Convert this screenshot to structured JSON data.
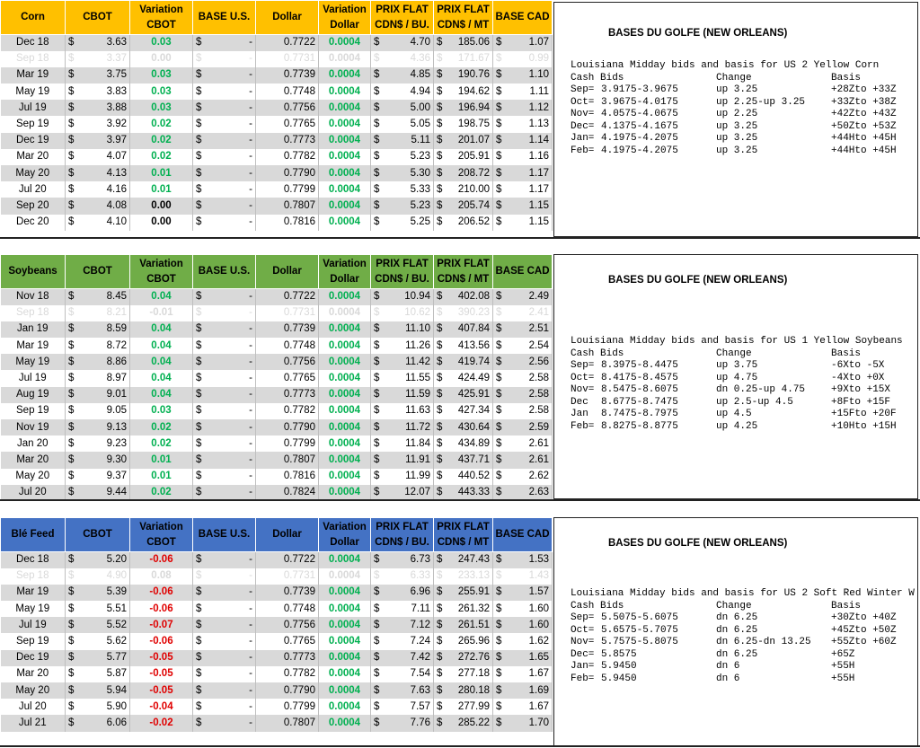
{
  "headers": {
    "cbot": "CBOT",
    "variation_cbot": [
      "Variation",
      "CBOT"
    ],
    "base_us": "BASE U.S.",
    "dollar": "Dollar",
    "variation_dollar": [
      "Variation",
      "Dollar"
    ],
    "prix_bu": [
      "PRIX FLAT",
      "CDN$ / BU."
    ],
    "prix_mt": [
      "PRIX FLAT",
      "CDN$ / MT"
    ],
    "base_cad": "BASE CAD"
  },
  "tables": [
    {
      "commodity": "Corn",
      "color": "#ffc000",
      "rows": [
        {
          "m": "Dec 18",
          "cbot": "3.63",
          "var": "0.03",
          "bus": "-",
          "dol": "0.7722",
          "vd": "0.0004",
          "bu": "4.70",
          "mt": "185.06",
          "cad": "1.07"
        },
        {
          "m": "Sep 18",
          "cbot": "3.37",
          "var": "0.00",
          "bus": "-",
          "dol": "0.7731",
          "vd": "0.0004",
          "bu": "4.36",
          "mt": "171.67",
          "cad": "0.99",
          "ghost": true
        },
        {
          "m": "Mar 19",
          "cbot": "3.75",
          "var": "0.03",
          "bus": "-",
          "dol": "0.7739",
          "vd": "0.0004",
          "bu": "4.85",
          "mt": "190.76",
          "cad": "1.10"
        },
        {
          "m": "May 19",
          "cbot": "3.83",
          "var": "0.03",
          "bus": "-",
          "dol": "0.7748",
          "vd": "0.0004",
          "bu": "4.94",
          "mt": "194.62",
          "cad": "1.11"
        },
        {
          "m": "Jul 19",
          "cbot": "3.88",
          "var": "0.03",
          "bus": "-",
          "dol": "0.7756",
          "vd": "0.0004",
          "bu": "5.00",
          "mt": "196.94",
          "cad": "1.12"
        },
        {
          "m": "Sep 19",
          "cbot": "3.92",
          "var": "0.02",
          "bus": "-",
          "dol": "0.7765",
          "vd": "0.0004",
          "bu": "5.05",
          "mt": "198.75",
          "cad": "1.13"
        },
        {
          "m": "Dec 19",
          "cbot": "3.97",
          "var": "0.02",
          "bus": "-",
          "dol": "0.7773",
          "vd": "0.0004",
          "bu": "5.11",
          "mt": "201.07",
          "cad": "1.14"
        },
        {
          "m": "Mar 20",
          "cbot": "4.07",
          "var": "0.02",
          "bus": "-",
          "dol": "0.7782",
          "vd": "0.0004",
          "bu": "5.23",
          "mt": "205.91",
          "cad": "1.16"
        },
        {
          "m": "May 20",
          "cbot": "4.13",
          "var": "0.01",
          "bus": "-",
          "dol": "0.7790",
          "vd": "0.0004",
          "bu": "5.30",
          "mt": "208.72",
          "cad": "1.17"
        },
        {
          "m": "Jul 20",
          "cbot": "4.16",
          "var": "0.01",
          "bus": "-",
          "dol": "0.7799",
          "vd": "0.0004",
          "bu": "5.33",
          "mt": "210.00",
          "cad": "1.17"
        },
        {
          "m": "Sep 20",
          "cbot": "4.08",
          "var": "0.00",
          "bus": "-",
          "dol": "0.7807",
          "vd": "0.0004",
          "bu": "5.23",
          "mt": "205.74",
          "cad": "1.15"
        },
        {
          "m": "Dec 20",
          "cbot": "4.10",
          "var": "0.00",
          "bus": "-",
          "dol": "0.7816",
          "vd": "0.0004",
          "bu": "5.25",
          "mt": "206.52",
          "cad": "1.15"
        }
      ],
      "panel": {
        "title": "BASES DU GOLFE (NEW ORLEANS)",
        "heading": "Louisiana Midday bids and basis for US 2 Yellow Corn",
        "cols": [
          "Cash Bids",
          "Change",
          "Basis"
        ],
        "lines": [
          [
            "Sep=",
            "3.9175-3.9675",
            "up 3.25",
            "+28Zto +33Z"
          ],
          [
            "Oct=",
            "3.9675-4.0175",
            "up 2.25-up 3.25",
            "+33Zto +38Z"
          ],
          [
            "Nov=",
            "4.0575-4.0675",
            "up 2.25",
            "+42Zto +43Z"
          ],
          [
            "Dec=",
            "4.1375-4.1675",
            "up 3.25",
            "+50Zto +53Z"
          ],
          [
            "Jan=",
            "4.1975-4.2075",
            "up 3.25",
            "+44Hto +45H"
          ],
          [
            "Feb=",
            "4.1975-4.2075",
            "up 3.25",
            "+44Hto +45H"
          ]
        ]
      }
    },
    {
      "commodity": "Soybeans",
      "color": "#70ad47",
      "rows": [
        {
          "m": "Nov 18",
          "cbot": "8.45",
          "var": "0.04",
          "bus": "-",
          "dol": "0.7722",
          "vd": "0.0004",
          "bu": "10.94",
          "mt": "402.08",
          "cad": "2.49"
        },
        {
          "m": "Sep 18",
          "cbot": "8.21",
          "var": "-0.01",
          "bus": "-",
          "dol": "0.7731",
          "vd": "0.0004",
          "bu": "10.62",
          "mt": "390.23",
          "cad": "2.41",
          "ghost": true
        },
        {
          "m": "Jan 19",
          "cbot": "8.59",
          "var": "0.04",
          "bus": "-",
          "dol": "0.7739",
          "vd": "0.0004",
          "bu": "11.10",
          "mt": "407.84",
          "cad": "2.51"
        },
        {
          "m": "Mar 19",
          "cbot": "8.72",
          "var": "0.04",
          "bus": "-",
          "dol": "0.7748",
          "vd": "0.0004",
          "bu": "11.26",
          "mt": "413.56",
          "cad": "2.54"
        },
        {
          "m": "May 19",
          "cbot": "8.86",
          "var": "0.04",
          "bus": "-",
          "dol": "0.7756",
          "vd": "0.0004",
          "bu": "11.42",
          "mt": "419.74",
          "cad": "2.56"
        },
        {
          "m": "Jul 19",
          "cbot": "8.97",
          "var": "0.04",
          "bus": "-",
          "dol": "0.7765",
          "vd": "0.0004",
          "bu": "11.55",
          "mt": "424.49",
          "cad": "2.58"
        },
        {
          "m": "Aug 19",
          "cbot": "9.01",
          "var": "0.04",
          "bus": "-",
          "dol": "0.7773",
          "vd": "0.0004",
          "bu": "11.59",
          "mt": "425.91",
          "cad": "2.58"
        },
        {
          "m": "Sep 19",
          "cbot": "9.05",
          "var": "0.03",
          "bus": "-",
          "dol": "0.7782",
          "vd": "0.0004",
          "bu": "11.63",
          "mt": "427.34",
          "cad": "2.58"
        },
        {
          "m": "Nov 19",
          "cbot": "9.13",
          "var": "0.02",
          "bus": "-",
          "dol": "0.7790",
          "vd": "0.0004",
          "bu": "11.72",
          "mt": "430.64",
          "cad": "2.59"
        },
        {
          "m": "Jan 20",
          "cbot": "9.23",
          "var": "0.02",
          "bus": "-",
          "dol": "0.7799",
          "vd": "0.0004",
          "bu": "11.84",
          "mt": "434.89",
          "cad": "2.61"
        },
        {
          "m": "Mar 20",
          "cbot": "9.30",
          "var": "0.01",
          "bus": "-",
          "dol": "0.7807",
          "vd": "0.0004",
          "bu": "11.91",
          "mt": "437.71",
          "cad": "2.61"
        },
        {
          "m": "May 20",
          "cbot": "9.37",
          "var": "0.01",
          "bus": "-",
          "dol": "0.7816",
          "vd": "0.0004",
          "bu": "11.99",
          "mt": "440.52",
          "cad": "2.62"
        },
        {
          "m": "Jul 20",
          "cbot": "9.44",
          "var": "0.02",
          "bus": "-",
          "dol": "0.7824",
          "vd": "0.0004",
          "bu": "12.07",
          "mt": "443.33",
          "cad": "2.63"
        }
      ],
      "panel": {
        "title": "BASES DU GOLFE (NEW ORLEANS)",
        "heading": "Louisiana Midday bids and basis for US 1 Yellow Soybeans",
        "cols": [
          "Cash Bids",
          "Change",
          "Basis"
        ],
        "lines": [
          [
            "Sep=",
            "8.3975-8.4475",
            "up 3.75",
            "-6Xto -5X"
          ],
          [
            "Oct=",
            "8.4175-8.4575",
            "up 4.75",
            "-4Xto +0X"
          ],
          [
            "Nov=",
            "8.5475-8.6075",
            "dn 0.25-up 4.75",
            "+9Xto +15X"
          ],
          [
            "Dec",
            "8.6775-8.7475",
            "up 2.5-up 4.5",
            "+8Fto +15F"
          ],
          [
            "Jan",
            "8.7475-8.7975",
            "up 4.5",
            "+15Fto +20F"
          ],
          [
            "Feb=",
            "8.8275-8.8775",
            "up 4.25",
            "+10Hto +15H"
          ]
        ]
      }
    },
    {
      "commodity": "Blé Feed",
      "color": "#4472c4",
      "rows": [
        {
          "m": "Dec 18",
          "cbot": "5.20",
          "var": "-0.06",
          "bus": "-",
          "dol": "0.7722",
          "vd": "0.0004",
          "bu": "6.73",
          "mt": "247.43",
          "cad": "1.53"
        },
        {
          "m": "Sep 18",
          "cbot": "4.90",
          "var": "0.08",
          "bus": "-",
          "dol": "0.7731",
          "vd": "0.0004",
          "bu": "6.33",
          "mt": "233.13",
          "cad": "1.43",
          "ghost": true
        },
        {
          "m": "Mar 19",
          "cbot": "5.39",
          "var": "-0.06",
          "bus": "-",
          "dol": "0.7739",
          "vd": "0.0004",
          "bu": "6.96",
          "mt": "255.91",
          "cad": "1.57"
        },
        {
          "m": "May 19",
          "cbot": "5.51",
          "var": "-0.06",
          "bus": "-",
          "dol": "0.7748",
          "vd": "0.0004",
          "bu": "7.11",
          "mt": "261.32",
          "cad": "1.60"
        },
        {
          "m": "Jul 19",
          "cbot": "5.52",
          "var": "-0.07",
          "bus": "-",
          "dol": "0.7756",
          "vd": "0.0004",
          "bu": "7.12",
          "mt": "261.51",
          "cad": "1.60"
        },
        {
          "m": "Sep 19",
          "cbot": "5.62",
          "var": "-0.06",
          "bus": "-",
          "dol": "0.7765",
          "vd": "0.0004",
          "bu": "7.24",
          "mt": "265.96",
          "cad": "1.62"
        },
        {
          "m": "Dec 19",
          "cbot": "5.77",
          "var": "-0.05",
          "bus": "-",
          "dol": "0.7773",
          "vd": "0.0004",
          "bu": "7.42",
          "mt": "272.76",
          "cad": "1.65"
        },
        {
          "m": "Mar 20",
          "cbot": "5.87",
          "var": "-0.05",
          "bus": "-",
          "dol": "0.7782",
          "vd": "0.0004",
          "bu": "7.54",
          "mt": "277.18",
          "cad": "1.67"
        },
        {
          "m": "May 20",
          "cbot": "5.94",
          "var": "-0.05",
          "bus": "-",
          "dol": "0.7790",
          "vd": "0.0004",
          "bu": "7.63",
          "mt": "280.18",
          "cad": "1.69"
        },
        {
          "m": "Jul 20",
          "cbot": "5.90",
          "var": "-0.04",
          "bus": "-",
          "dol": "0.7799",
          "vd": "0.0004",
          "bu": "7.57",
          "mt": "277.99",
          "cad": "1.67"
        },
        {
          "m": "Jul 21",
          "cbot": "6.06",
          "var": "-0.02",
          "bus": "-",
          "dol": "0.7807",
          "vd": "0.0004",
          "bu": "7.76",
          "mt": "285.22",
          "cad": "1.70"
        }
      ],
      "panel": {
        "title": "BASES DU GOLFE (NEW ORLEANS)",
        "heading": "Louisiana Midday bids and basis for US 2 Soft Red Winter W",
        "cols": [
          "Cash Bids",
          "Change",
          "Basis"
        ],
        "lines": [
          [
            "Sep=",
            "5.5075-5.6075",
            "dn 6.25",
            "+30Zto +40Z"
          ],
          [
            "Oct=",
            "5.6575-5.7075",
            "dn 6.25",
            "+45Zto +50Z"
          ],
          [
            "Nov=",
            "5.7575-5.8075",
            "dn 6.25-dn 13.25",
            "+55Zto +60Z"
          ],
          [
            "Dec=",
            "5.8575",
            "dn 6.25",
            "+65Z"
          ],
          [
            "Jan=",
            "5.9450",
            "dn 6",
            "+55H"
          ],
          [
            "Feb=",
            "5.9450",
            "dn 6",
            "+55H"
          ]
        ]
      }
    }
  ]
}
